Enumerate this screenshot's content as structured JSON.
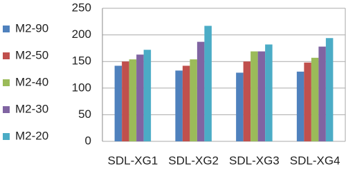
{
  "chart_data": {
    "type": "bar",
    "categories": [
      "SDL-XG1",
      "SDL-XG2",
      "SDL-XG3",
      "SDL-XG4"
    ],
    "series": [
      {
        "name": "M2-90",
        "color": "#4f81bd",
        "values": [
          142,
          133,
          129,
          131
        ]
      },
      {
        "name": "M2-50",
        "color": "#c0504d",
        "values": [
          150,
          142,
          150,
          148
        ]
      },
      {
        "name": "M2-40",
        "color": "#9bbb59",
        "values": [
          154,
          154,
          169,
          157
        ]
      },
      {
        "name": "M2-30",
        "color": "#8064a2",
        "values": [
          163,
          187,
          169,
          178
        ]
      },
      {
        "name": "M2-20",
        "color": "#4bacc6",
        "values": [
          172,
          217,
          182,
          194
        ]
      }
    ],
    "ylim": [
      0,
      250
    ],
    "yticks": [
      0,
      50,
      100,
      150,
      200,
      250
    ],
    "grid": true,
    "legend": "left"
  }
}
